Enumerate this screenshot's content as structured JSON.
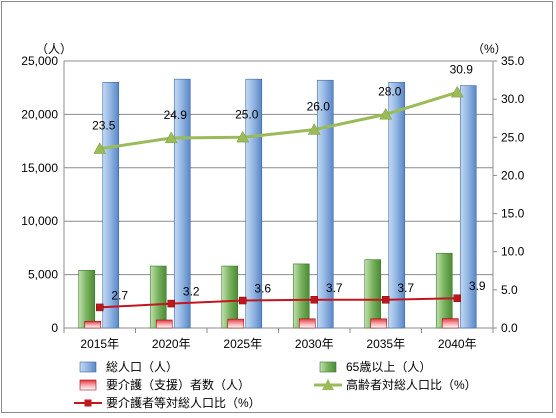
{
  "chart_data": {
    "type": "bar",
    "categories": [
      "2015年",
      "2020年",
      "2025年",
      "2030年",
      "2035年",
      "2040年"
    ],
    "left_axis": {
      "unit": "（人）",
      "ylim": [
        0,
        25000
      ],
      "ticks": [
        "0",
        "5,000",
        "10,000",
        "15,000",
        "20,000",
        "25,000"
      ]
    },
    "right_axis": {
      "unit": "（%）",
      "ylim": [
        0,
        35
      ],
      "ticks": [
        "0.0",
        "5.0",
        "10.0",
        "15.0",
        "20.0",
        "25.0",
        "30.0",
        "35.0"
      ]
    },
    "grid": true,
    "legend_position": "bottom",
    "series": [
      {
        "name": "総人口（人）",
        "kind": "bar",
        "axis": "left",
        "color": "#8fb4e3",
        "values": [
          23000,
          23300,
          23300,
          23200,
          23000,
          22700
        ]
      },
      {
        "name": "65歳以上（人）",
        "kind": "bar",
        "axis": "left",
        "color": "#77b25c",
        "values": [
          5400,
          5800,
          5800,
          6000,
          6400,
          7000
        ]
      },
      {
        "name": "要介護（支援）者数（人）",
        "kind": "bar",
        "axis": "left",
        "color": "#d9242c",
        "values": [
          630,
          750,
          830,
          860,
          860,
          880
        ]
      },
      {
        "name": "高齢者対総人口比（%）",
        "kind": "line",
        "axis": "right",
        "color": "#9bbb59",
        "marker": "triangle",
        "values": [
          23.5,
          24.9,
          25.0,
          26.0,
          28.0,
          30.9
        ],
        "labels": [
          "23.5",
          "24.9",
          "25.0",
          "26.0",
          "28.0",
          "30.9"
        ]
      },
      {
        "name": "要介護者等対総人口比（%）",
        "kind": "line",
        "axis": "right",
        "color": "#c0171f",
        "marker": "square",
        "values": [
          2.7,
          3.2,
          3.6,
          3.7,
          3.7,
          3.9
        ],
        "labels": [
          "2.7",
          "3.2",
          "3.6",
          "3.7",
          "3.7",
          "3.9"
        ]
      }
    ]
  }
}
